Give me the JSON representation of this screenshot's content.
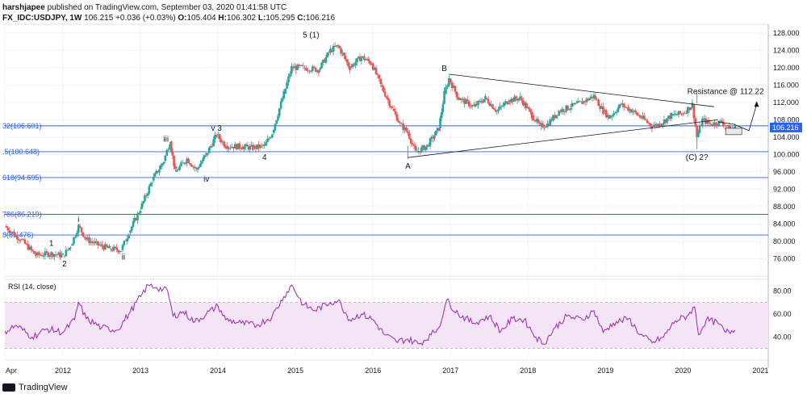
{
  "header": {
    "author": "harshjapee",
    "published": "published on TradingView.com, September 03, 2020 01:41:58 UTC",
    "symbol": "FX_IDC:USDJPY, 1W",
    "last": "106.215",
    "change": "+0.036 (+0.03%)",
    "o_label": "O:",
    "o": "105.404",
    "h_label": "H:",
    "h": "106.302",
    "l_label": "L:",
    "l": "105.295",
    "c_label": "C:",
    "c": "106.216"
  },
  "footer": {
    "brand": "TradingView"
  },
  "colors": {
    "up": "#26a69a",
    "down": "#ef5350",
    "fib": "#2962ff",
    "rsi": "#9c27b0",
    "rsi_band": "#f3e5f5",
    "price_tag": "#2962ff"
  },
  "chart_data": [
    {
      "type": "candlestick",
      "title": "FX_IDC:USDJPY, 1W",
      "ylim": [
        72,
        130
      ],
      "y_ticks": [
        "128.000",
        "124.000",
        "120.000",
        "116.000",
        "112.000",
        "108.000",
        "104.000",
        "100.000",
        "96.000",
        "92.000",
        "88.000",
        "84.000",
        "80.000",
        "76.000"
      ],
      "x_ticks": [
        "Apr",
        "2012",
        "2013",
        "2014",
        "2015",
        "2016",
        "2017",
        "2018",
        "2019",
        "2020",
        "2021"
      ],
      "x_tick_years": [
        2011.25,
        2012,
        2013,
        2014,
        2015,
        2016,
        2017,
        2018,
        2019,
        2020,
        2021
      ],
      "last_price_label": "106.216",
      "price_path": [
        [
          2011.25,
          83.5
        ],
        [
          2011.45,
          80.5
        ],
        [
          2011.65,
          76.8
        ],
        [
          2011.85,
          77.2
        ],
        [
          2012.0,
          76.7
        ],
        [
          2012.1,
          79.0
        ],
        [
          2012.2,
          83.5
        ],
        [
          2012.3,
          80.5
        ],
        [
          2012.45,
          79.2
        ],
        [
          2012.6,
          78.3
        ],
        [
          2012.75,
          78.0
        ],
        [
          2012.85,
          82.0
        ],
        [
          2013.0,
          87.5
        ],
        [
          2013.15,
          94.0
        ],
        [
          2013.3,
          98.5
        ],
        [
          2013.38,
          103.0
        ],
        [
          2013.45,
          96.0
        ],
        [
          2013.6,
          99.0
        ],
        [
          2013.72,
          96.5
        ],
        [
          2013.85,
          100.0
        ],
        [
          2013.98,
          104.5
        ],
        [
          2014.1,
          102.0
        ],
        [
          2014.3,
          101.8
        ],
        [
          2014.45,
          101.5
        ],
        [
          2014.6,
          102.0
        ],
        [
          2014.7,
          105.0
        ],
        [
          2014.85,
          114.0
        ],
        [
          2014.95,
          120.0
        ],
        [
          2015.1,
          120.0
        ],
        [
          2015.3,
          119.5
        ],
        [
          2015.45,
          124.0
        ],
        [
          2015.55,
          125.0
        ],
        [
          2015.7,
          120.0
        ],
        [
          2015.85,
          122.5
        ],
        [
          2015.98,
          121.0
        ],
        [
          2016.1,
          116.0
        ],
        [
          2016.25,
          110.5
        ],
        [
          2016.35,
          107.0
        ],
        [
          2016.45,
          105.0
        ],
        [
          2016.55,
          100.5
        ],
        [
          2016.7,
          102.0
        ],
        [
          2016.85,
          106.0
        ],
        [
          2016.92,
          114.0
        ],
        [
          2016.98,
          117.5
        ],
        [
          2017.1,
          113.0
        ],
        [
          2017.3,
          111.0
        ],
        [
          2017.45,
          113.0
        ],
        [
          2017.6,
          110.0
        ],
        [
          2017.75,
          112.5
        ],
        [
          2017.9,
          113.0
        ],
        [
          2018.05,
          109.0
        ],
        [
          2018.15,
          106.5
        ],
        [
          2018.25,
          107.0
        ],
        [
          2018.4,
          110.0
        ],
        [
          2018.55,
          111.0
        ],
        [
          2018.7,
          112.0
        ],
        [
          2018.85,
          113.5
        ],
        [
          2018.97,
          110.0
        ],
        [
          2019.05,
          108.5
        ],
        [
          2019.2,
          111.5
        ],
        [
          2019.35,
          110.0
        ],
        [
          2019.5,
          108.0
        ],
        [
          2019.6,
          106.5
        ],
        [
          2019.7,
          107.0
        ],
        [
          2019.85,
          109.0
        ],
        [
          2020.0,
          109.5
        ],
        [
          2020.12,
          111.5
        ],
        [
          2020.18,
          104.0
        ],
        [
          2020.25,
          108.0
        ],
        [
          2020.35,
          107.0
        ],
        [
          2020.5,
          107.5
        ],
        [
          2020.6,
          105.8
        ],
        [
          2020.67,
          106.2
        ]
      ],
      "wick_outliers": [
        [
          2016.45,
          99.0
        ],
        [
          2020.18,
          101.2
        ],
        [
          2020.18,
          111.8
        ]
      ],
      "fib_lines": [
        {
          "label": "32(106.601)",
          "value": 106.601
        },
        {
          "label": ".5(100.648)",
          "value": 100.648
        },
        {
          "label": "618(94.695)",
          "value": 94.695
        },
        {
          "label": "786(86.219)",
          "value": 86.219
        },
        {
          "label": "8(81.476)",
          "value": 81.476
        }
      ],
      "trendlines": [
        {
          "from": [
            2016.98,
            118.5
          ],
          "to": [
            2020.4,
            111.0
          ]
        },
        {
          "from": [
            2016.45,
            99.3
          ],
          "to": [
            2020.45,
            108.0
          ]
        }
      ],
      "wave_labels": [
        {
          "text": "1",
          "x": 2011.85,
          "y": 78.0,
          "pos": "above"
        },
        {
          "text": "2",
          "x": 2012.02,
          "y": 76.5,
          "pos": "below"
        },
        {
          "text": "i",
          "x": 2012.2,
          "y": 83.5,
          "pos": "above"
        },
        {
          "text": "ii",
          "x": 2012.78,
          "y": 78.0,
          "pos": "below"
        },
        {
          "text": "iii",
          "x": 2013.33,
          "y": 102.0,
          "pos": "above"
        },
        {
          "text": "iv",
          "x": 2013.85,
          "y": 96.0,
          "pos": "below"
        },
        {
          "text": "v 3",
          "x": 2013.98,
          "y": 104.5,
          "pos": "above"
        },
        {
          "text": "4",
          "x": 2014.6,
          "y": 101.0,
          "pos": "below"
        },
        {
          "text": "5 (1)",
          "x": 2015.2,
          "y": 126.0,
          "pos": "above"
        },
        {
          "text": "A",
          "x": 2016.45,
          "y": 99.0,
          "pos": "below"
        },
        {
          "text": "B",
          "x": 2016.92,
          "y": 118.3,
          "pos": "above"
        },
        {
          "text": "(C) 2?",
          "x": 2020.18,
          "y": 101.0,
          "pos": "below"
        },
        {
          "text": "Resistance @ 112.22",
          "x": 2020.55,
          "y": 113.0,
          "pos": "above"
        }
      ]
    },
    {
      "type": "line",
      "title": "RSI (14, close)",
      "ylim": [
        20,
        90
      ],
      "y_ticks": [
        "80.00",
        "60.00",
        "40.00"
      ],
      "band": [
        30,
        70
      ],
      "series": [
        {
          "values": [
            [
              2011.25,
              45
            ],
            [
              2011.4,
              50
            ],
            [
              2011.6,
              40
            ],
            [
              2011.8,
              47
            ],
            [
              2012.0,
              44
            ],
            [
              2012.15,
              55
            ],
            [
              2012.2,
              70
            ],
            [
              2012.3,
              56
            ],
            [
              2012.5,
              48
            ],
            [
              2012.7,
              46
            ],
            [
              2012.85,
              60
            ],
            [
              2013.0,
              75
            ],
            [
              2013.1,
              85
            ],
            [
              2013.2,
              83
            ],
            [
              2013.35,
              80
            ],
            [
              2013.42,
              58
            ],
            [
              2013.55,
              62
            ],
            [
              2013.7,
              53
            ],
            [
              2013.85,
              60
            ],
            [
              2014.0,
              67
            ],
            [
              2014.1,
              55
            ],
            [
              2014.3,
              52
            ],
            [
              2014.5,
              50
            ],
            [
              2014.7,
              58
            ],
            [
              2014.85,
              75
            ],
            [
              2014.95,
              85
            ],
            [
              2015.1,
              68
            ],
            [
              2015.25,
              63
            ],
            [
              2015.45,
              70
            ],
            [
              2015.55,
              72
            ],
            [
              2015.7,
              55
            ],
            [
              2015.85,
              60
            ],
            [
              2016.0,
              55
            ],
            [
              2016.15,
              42
            ],
            [
              2016.3,
              36
            ],
            [
              2016.45,
              38
            ],
            [
              2016.6,
              34
            ],
            [
              2016.75,
              42
            ],
            [
              2016.85,
              48
            ],
            [
              2016.95,
              72
            ],
            [
              2017.1,
              60
            ],
            [
              2017.3,
              52
            ],
            [
              2017.5,
              58
            ],
            [
              2017.65,
              45
            ],
            [
              2017.8,
              56
            ],
            [
              2017.95,
              55
            ],
            [
              2018.1,
              40
            ],
            [
              2018.2,
              34
            ],
            [
              2018.35,
              48
            ],
            [
              2018.5,
              58
            ],
            [
              2018.7,
              55
            ],
            [
              2018.85,
              63
            ],
            [
              2018.97,
              44
            ],
            [
              2019.1,
              52
            ],
            [
              2019.3,
              56
            ],
            [
              2019.45,
              42
            ],
            [
              2019.6,
              35
            ],
            [
              2019.75,
              40
            ],
            [
              2019.9,
              54
            ],
            [
              2020.05,
              58
            ],
            [
              2020.15,
              66
            ],
            [
              2020.2,
              42
            ],
            [
              2020.3,
              55
            ],
            [
              2020.45,
              52
            ],
            [
              2020.55,
              44
            ],
            [
              2020.67,
              46
            ]
          ]
        }
      ]
    }
  ]
}
